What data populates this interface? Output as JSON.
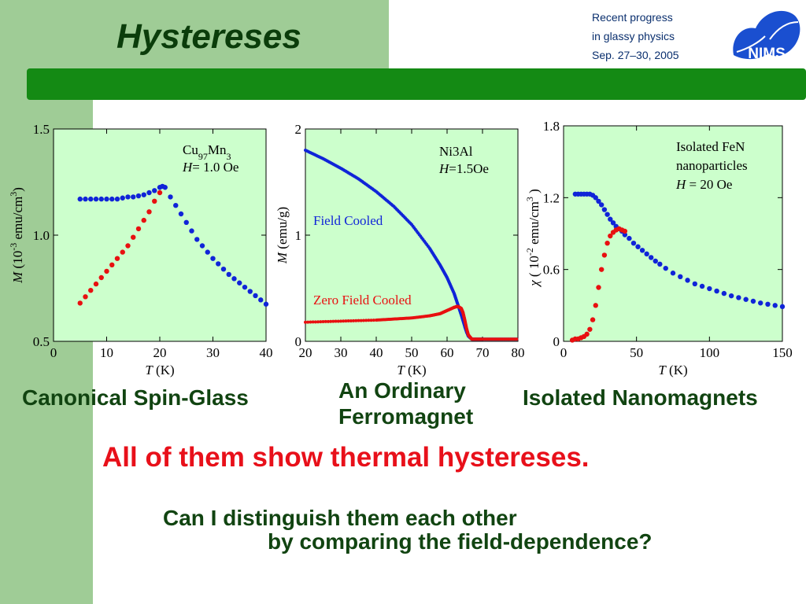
{
  "slide": {
    "title": "Hystereses",
    "conference": [
      "Recent progress",
      "in glassy physics",
      "Sep. 27–30, 2005"
    ],
    "logo_text": "NIMS",
    "captions": {
      "canonical": "Canonical Spin-Glass",
      "ferro_line1": "An Ordinary",
      "ferro_line2": "Ferromagnet",
      "nano": "Isolated Nanomagnets"
    },
    "statement": "All of them show thermal hystereses.",
    "question_line1": "Can I distinguish them each other",
    "question_line2": "by comparing the field-dependence?"
  },
  "colors": {
    "sidebar": "#9fcc96",
    "green_bar": "#148a14",
    "title": "#0b3d0b",
    "plot_bg": "#ccffcc",
    "blue": "#1024d8",
    "red": "#e81010",
    "statement": "#e8101a",
    "caption": "#114411",
    "conference": "#0a2f6e"
  },
  "chart_data": [
    {
      "type": "scatter",
      "label_lines": [
        "Cu97Mn3",
        "H= 1.0 Oe"
      ],
      "xlabel": "T (K)",
      "ylabel": "M (10-3 emu/cm3)",
      "xlim": [
        0,
        40
      ],
      "ylim": [
        0.5,
        1.5
      ],
      "xticks": [
        0,
        10,
        20,
        30,
        40
      ],
      "yticks": [
        0.5,
        1.0,
        1.5
      ],
      "xtick_labels": [
        "0",
        "10",
        "20",
        "30",
        "40"
      ],
      "ytick_labels": [
        "0.5",
        "1.0",
        "1.5"
      ],
      "series": [
        {
          "color": "blue",
          "x": [
            5,
            6,
            7,
            8,
            9,
            10,
            11,
            12,
            13,
            14,
            15,
            16,
            17,
            18,
            19,
            20,
            20.5,
            21,
            22,
            23,
            24,
            25,
            26,
            27,
            28,
            29,
            30,
            31,
            32,
            33,
            34,
            35,
            36,
            37,
            38,
            39,
            40
          ],
          "y": [
            1.17,
            1.17,
            1.17,
            1.17,
            1.17,
            1.17,
            1.17,
            1.17,
            1.175,
            1.18,
            1.18,
            1.185,
            1.19,
            1.2,
            1.21,
            1.225,
            1.23,
            1.225,
            1.18,
            1.14,
            1.1,
            1.06,
            1.02,
            0.98,
            0.95,
            0.92,
            0.89,
            0.865,
            0.84,
            0.815,
            0.795,
            0.775,
            0.755,
            0.735,
            0.715,
            0.695,
            0.675
          ]
        },
        {
          "color": "red",
          "x": [
            5,
            6,
            7,
            8,
            9,
            10,
            11,
            12,
            13,
            14,
            15,
            16,
            17,
            18,
            19,
            20
          ],
          "y": [
            0.68,
            0.71,
            0.74,
            0.77,
            0.8,
            0.83,
            0.86,
            0.89,
            0.92,
            0.95,
            0.99,
            1.03,
            1.07,
            1.11,
            1.16,
            1.2
          ]
        }
      ]
    },
    {
      "type": "scatter",
      "label_lines": [
        "Ni3Al",
        "H=1.5Oe"
      ],
      "series_labels": {
        "fc": "Field Cooled",
        "zfc": "Zero Field Cooled"
      },
      "xlabel": "T (K)",
      "ylabel": "M (emu/g)",
      "xlim": [
        20,
        80
      ],
      "ylim": [
        0,
        2
      ],
      "xticks": [
        20,
        30,
        40,
        50,
        60,
        70,
        80
      ],
      "yticks": [
        0,
        1,
        2
      ],
      "xtick_labels": [
        "20",
        "30",
        "40",
        "50",
        "60",
        "70",
        "80"
      ],
      "ytick_labels": [
        "0",
        "1",
        "2"
      ],
      "series": [
        {
          "color": "blue",
          "x": [
            20,
            25,
            30,
            35,
            40,
            45,
            50,
            55,
            58,
            60,
            62,
            63,
            64,
            65,
            65.5,
            66,
            67,
            70,
            75,
            80
          ],
          "y": [
            1.8,
            1.72,
            1.63,
            1.53,
            1.41,
            1.27,
            1.1,
            0.88,
            0.72,
            0.6,
            0.45,
            0.35,
            0.25,
            0.14,
            0.09,
            0.05,
            0.02,
            0.02,
            0.02,
            0.02
          ]
        },
        {
          "color": "red",
          "x": [
            20,
            30,
            40,
            45,
            50,
            55,
            58,
            60,
            62,
            63,
            64,
            64.5,
            65,
            65.5,
            66,
            67,
            70,
            75,
            80
          ],
          "y": [
            0.18,
            0.19,
            0.2,
            0.21,
            0.22,
            0.24,
            0.26,
            0.29,
            0.32,
            0.33,
            0.31,
            0.27,
            0.2,
            0.12,
            0.06,
            0.02,
            0.02,
            0.02,
            0.02
          ]
        }
      ]
    },
    {
      "type": "scatter",
      "label_lines": [
        "Isolated FeN",
        "nanoparticles",
        "H = 20 Oe"
      ],
      "xlabel": "T (K)",
      "ylabel": "χ ( 10-2 emu/cm3 )",
      "xlim": [
        0,
        150
      ],
      "ylim": [
        0,
        1.8
      ],
      "xticks": [
        0,
        50,
        100,
        150
      ],
      "yticks": [
        0.6,
        1.2,
        1.8
      ],
      "xtick_labels": [
        "0",
        "50",
        "100",
        "150"
      ],
      "ytick_labels": [
        "0.6",
        "1.2",
        "1.8"
      ],
      "series": [
        {
          "color": "blue",
          "x": [
            8,
            10,
            12,
            14,
            16,
            18,
            20,
            22,
            24,
            26,
            28,
            30,
            32,
            34,
            36,
            38,
            40,
            42,
            45,
            48,
            51,
            54,
            57,
            60,
            63,
            66,
            70,
            75,
            80,
            85,
            90,
            95,
            100,
            105,
            110,
            115,
            120,
            125,
            130,
            135,
            140,
            145,
            150
          ],
          "y": [
            1.23,
            1.23,
            1.23,
            1.23,
            1.23,
            1.23,
            1.22,
            1.2,
            1.17,
            1.14,
            1.1,
            1.06,
            1.02,
            0.99,
            0.96,
            0.94,
            0.92,
            0.89,
            0.86,
            0.82,
            0.79,
            0.76,
            0.73,
            0.7,
            0.67,
            0.645,
            0.61,
            0.57,
            0.54,
            0.51,
            0.48,
            0.46,
            0.44,
            0.42,
            0.4,
            0.38,
            0.365,
            0.35,
            0.335,
            0.32,
            0.31,
            0.3,
            0.29
          ]
        },
        {
          "color": "red",
          "x": [
            6,
            8,
            10,
            12,
            14,
            16,
            18,
            20,
            22,
            24,
            26,
            28,
            30,
            32,
            34,
            36,
            38,
            40,
            42
          ],
          "y": [
            0.01,
            0.02,
            0.02,
            0.03,
            0.04,
            0.06,
            0.1,
            0.18,
            0.3,
            0.45,
            0.6,
            0.72,
            0.82,
            0.88,
            0.91,
            0.93,
            0.94,
            0.93,
            0.92
          ]
        }
      ]
    }
  ]
}
